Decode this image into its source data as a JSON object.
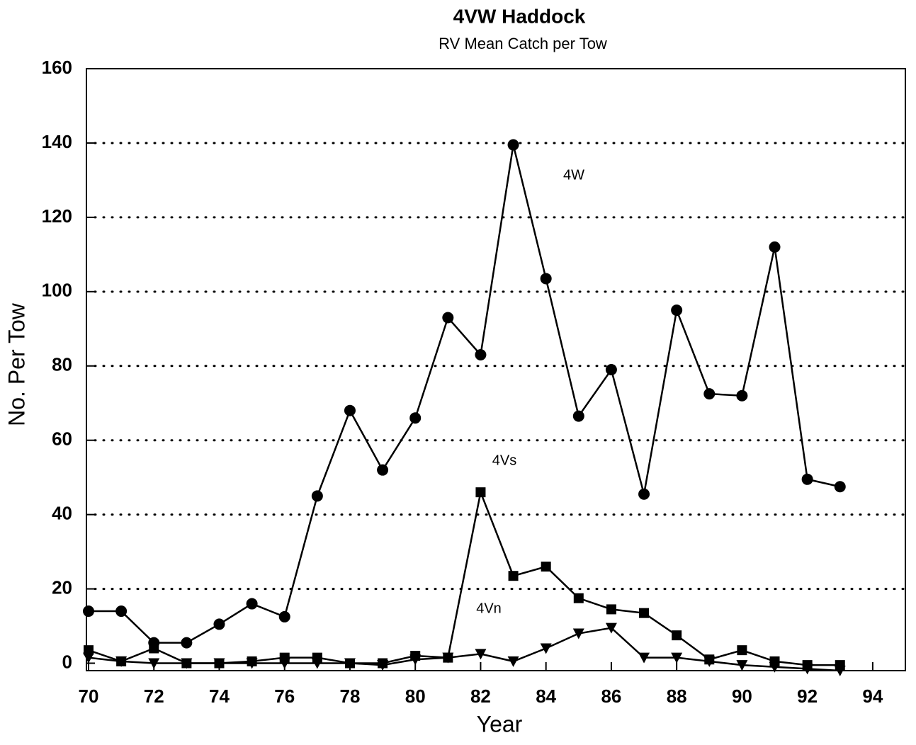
{
  "chart_data": {
    "type": "line",
    "title": "4VW Haddock",
    "subtitle": "RV Mean Catch per Tow",
    "xlabel": "Year",
    "ylabel": "No. Per Tow",
    "x": [
      70,
      71,
      72,
      73,
      74,
      75,
      76,
      77,
      78,
      79,
      80,
      81,
      82,
      83,
      84,
      85,
      86,
      87,
      88,
      89,
      90,
      91,
      92,
      93
    ],
    "series": [
      {
        "name": "4W",
        "color": "#000000",
        "marker": "circle",
        "values": [
          14,
          14,
          5.5,
          5.5,
          10.5,
          16,
          12.5,
          45,
          68,
          52,
          66,
          93,
          83,
          139.5,
          103.5,
          66.5,
          79,
          45.5,
          95,
          72.5,
          72,
          112,
          49.5,
          47.5
        ]
      },
      {
        "name": "4Vs",
        "color": "#000000",
        "marker": "square",
        "values": [
          3.5,
          0.5,
          4,
          0,
          0,
          0.5,
          1.5,
          1.5,
          0,
          0,
          2,
          1.5,
          46,
          23.5,
          26,
          17.5,
          14.5,
          13.5,
          7.5,
          1,
          3.5,
          0.5,
          -0.5,
          -0.5
        ]
      },
      {
        "name": "4Vn",
        "color": "#000000",
        "marker": "triangle-down",
        "values": [
          1.5,
          0.5,
          0,
          0,
          0,
          0,
          0,
          0,
          0,
          -0.5,
          1,
          1.5,
          2.5,
          0.5,
          4,
          8,
          9.5,
          1.5,
          1.5,
          0.5,
          -0.5,
          -1,
          -1.5,
          -2
        ]
      }
    ],
    "xlim": [
      70,
      95
    ],
    "xticks": [
      70,
      72,
      74,
      76,
      78,
      80,
      82,
      84,
      86,
      88,
      90,
      92,
      94
    ],
    "ylim": [
      -2,
      160
    ],
    "yticks": [
      0,
      20,
      40,
      60,
      80,
      100,
      120,
      140,
      160
    ],
    "grid": true
  }
}
